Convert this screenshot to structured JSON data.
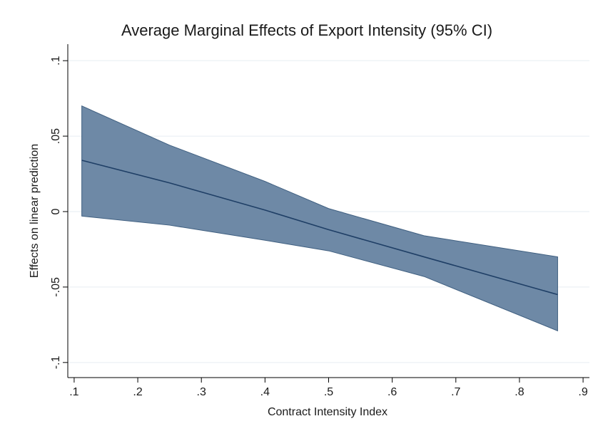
{
  "chart_data": {
    "type": "area",
    "title": "Average Marginal Effects of Export Intensity (95% CI)",
    "xlabel": "Contract Intensity Index",
    "ylabel": "Effects on linear prediction",
    "xlim": [
      0.09,
      0.91
    ],
    "ylim": [
      -0.11,
      0.11
    ],
    "x_ticks": [
      0.1,
      0.2,
      0.3,
      0.4,
      0.5,
      0.6,
      0.7,
      0.8,
      0.9
    ],
    "x_tick_labels": [
      ".1",
      ".2",
      ".3",
      ".4",
      ".5",
      ".6",
      ".7",
      ".8",
      ".9"
    ],
    "y_ticks": [
      -0.1,
      -0.05,
      0,
      0.05,
      0.1
    ],
    "y_tick_labels": [
      "-.1",
      "-.05",
      "0",
      ".05",
      ".1"
    ],
    "grid": "horizontal",
    "colors": {
      "band_fill": "#6e89a6",
      "band_edge": "#3f5f80",
      "line": "#1f3f66"
    },
    "series": [
      {
        "x": [
          0.112,
          0.25,
          0.4,
          0.5,
          0.65,
          0.86
        ],
        "values": [
          0.034,
          0.019,
          0.001,
          -0.012,
          -0.03,
          -0.055
        ],
        "lower": [
          -0.003,
          -0.009,
          -0.019,
          -0.026,
          -0.043,
          -0.079
        ],
        "upper": [
          0.07,
          0.044,
          0.02,
          0.002,
          -0.016,
          -0.03
        ]
      }
    ]
  }
}
